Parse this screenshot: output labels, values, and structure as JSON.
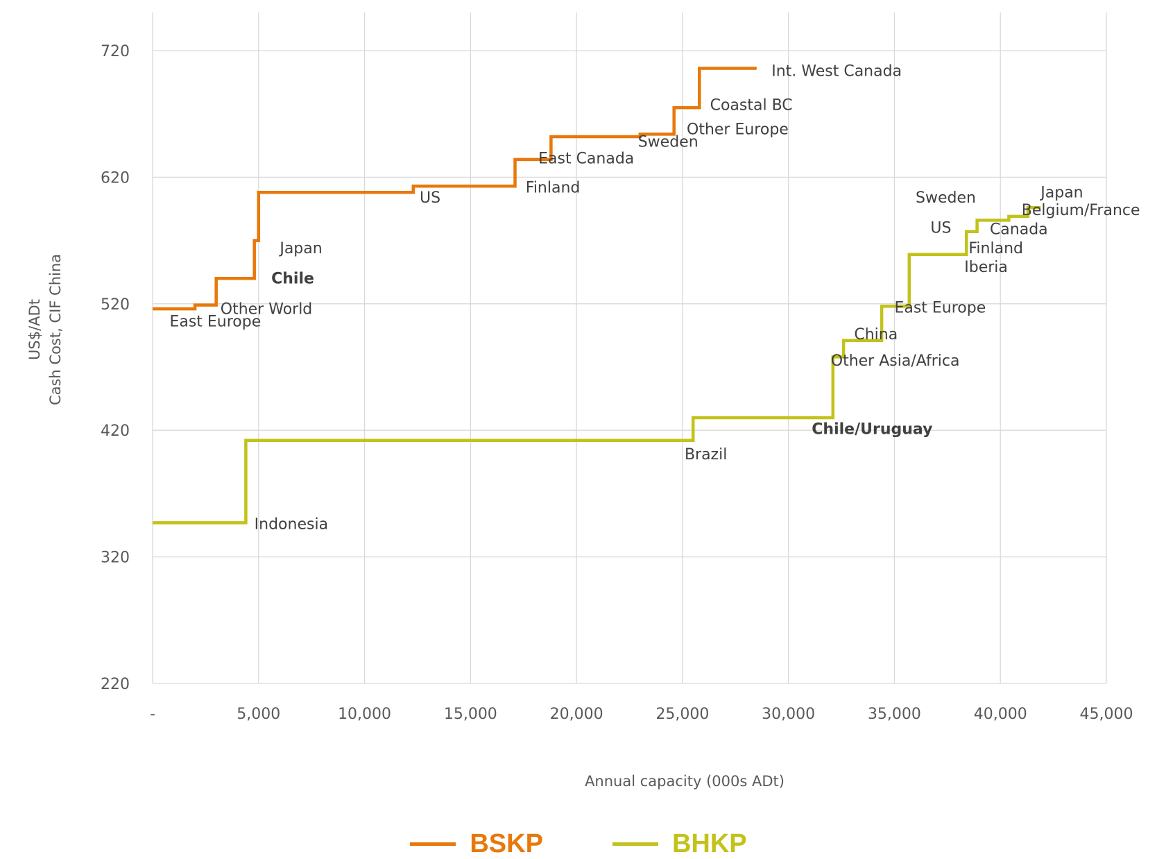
{
  "chart_data": {
    "type": "line",
    "step": true,
    "xlabel": "Annual capacity (000s ADt)",
    "ylabel_lines": [
      "US$/ADt",
      "Cash Cost, CIF China"
    ],
    "xlim": [
      0,
      45000
    ],
    "ylim": [
      220,
      720
    ],
    "x_ticks": [
      0,
      5000,
      10000,
      15000,
      20000,
      25000,
      30000,
      35000,
      40000,
      45000
    ],
    "x_tick_labels": [
      "-",
      "5,000",
      "10,000",
      "15,000",
      "20,000",
      "25,000",
      "30,000",
      "35,000",
      "40,000",
      "45,000"
    ],
    "y_ticks": [
      220,
      320,
      420,
      520,
      620,
      720
    ],
    "y_tick_labels": [
      "220",
      "320",
      "420",
      "520",
      "620",
      "720"
    ],
    "grid": true,
    "legend_position": "bottom",
    "series": [
      {
        "name": "BSKP",
        "color": "#E8780A",
        "points": [
          [
            0,
            516
          ],
          [
            2000,
            516
          ],
          [
            2000,
            519
          ],
          [
            3000,
            519
          ],
          [
            3000,
            540
          ],
          [
            4800,
            540
          ],
          [
            4800,
            570
          ],
          [
            5000,
            570
          ],
          [
            5000,
            608
          ],
          [
            12300,
            608
          ],
          [
            12300,
            613
          ],
          [
            17100,
            613
          ],
          [
            17100,
            634
          ],
          [
            18800,
            634
          ],
          [
            18800,
            652
          ],
          [
            23000,
            652
          ],
          [
            23000,
            654
          ],
          [
            24600,
            654
          ],
          [
            24600,
            675
          ],
          [
            25800,
            675
          ],
          [
            25800,
            706
          ],
          [
            28500,
            706
          ]
        ]
      },
      {
        "name": "BHKP",
        "color": "#C2C21A",
        "points": [
          [
            0,
            347
          ],
          [
            4400,
            347
          ],
          [
            4400,
            412
          ],
          [
            25500,
            412
          ],
          [
            25500,
            430
          ],
          [
            32100,
            430
          ],
          [
            32100,
            478
          ],
          [
            32600,
            478
          ],
          [
            32600,
            491
          ],
          [
            34400,
            491
          ],
          [
            34400,
            518
          ],
          [
            35700,
            518
          ],
          [
            35700,
            559
          ],
          [
            38400,
            559
          ],
          [
            38400,
            577
          ],
          [
            38900,
            577
          ],
          [
            38900,
            586
          ],
          [
            40400,
            586
          ],
          [
            40400,
            589
          ],
          [
            41300,
            589
          ],
          [
            41300,
            596
          ],
          [
            41900,
            596
          ]
        ]
      }
    ],
    "annotations": [
      {
        "text": "East Europe",
        "x": 800,
        "y": 502,
        "bold": false
      },
      {
        "text": "Other World",
        "x": 3200,
        "y": 512,
        "bold": false
      },
      {
        "text": "Chile",
        "x": 5600,
        "y": 536,
        "bold": true
      },
      {
        "text": "Japan",
        "x": 6000,
        "y": 560,
        "bold": false
      },
      {
        "text": "US",
        "x": 12600,
        "y": 600,
        "bold": false
      },
      {
        "text": "Finland",
        "x": 17600,
        "y": 608,
        "bold": false
      },
      {
        "text": "East Canada",
        "x": 18200,
        "y": 631,
        "bold": false
      },
      {
        "text": "Sweden",
        "x": 22900,
        "y": 644,
        "bold": false
      },
      {
        "text": "Other Europe",
        "x": 25200,
        "y": 654,
        "bold": false
      },
      {
        "text": "Coastal BC",
        "x": 26300,
        "y": 673,
        "bold": false
      },
      {
        "text": "Int. West Canada",
        "x": 29200,
        "y": 700,
        "bold": false
      },
      {
        "text": "Indonesia",
        "x": 4800,
        "y": 342,
        "bold": false
      },
      {
        "text": "Brazil",
        "x": 25100,
        "y": 397,
        "bold": false
      },
      {
        "text": "Chile/Uruguay",
        "x": 31100,
        "y": 417,
        "bold": true
      },
      {
        "text": "Other Asia/Africa",
        "x": 32000,
        "y": 471,
        "bold": false
      },
      {
        "text": "China",
        "x": 33100,
        "y": 492,
        "bold": false
      },
      {
        "text": "East Europe",
        "x": 35000,
        "y": 513,
        "bold": false
      },
      {
        "text": "Iberia",
        "x": 38300,
        "y": 545,
        "bold": false
      },
      {
        "text": "Finland",
        "x": 38500,
        "y": 560,
        "bold": false
      },
      {
        "text": "US",
        "x": 36700,
        "y": 576,
        "bold": false
      },
      {
        "text": "Canada",
        "x": 39500,
        "y": 575,
        "bold": false
      },
      {
        "text": "Sweden",
        "x": 36000,
        "y": 600,
        "bold": false
      },
      {
        "text": "Belgium/France",
        "x": 41000,
        "y": 590,
        "bold": false
      },
      {
        "text": "Japan",
        "x": 41900,
        "y": 604,
        "bold": false
      }
    ]
  }
}
